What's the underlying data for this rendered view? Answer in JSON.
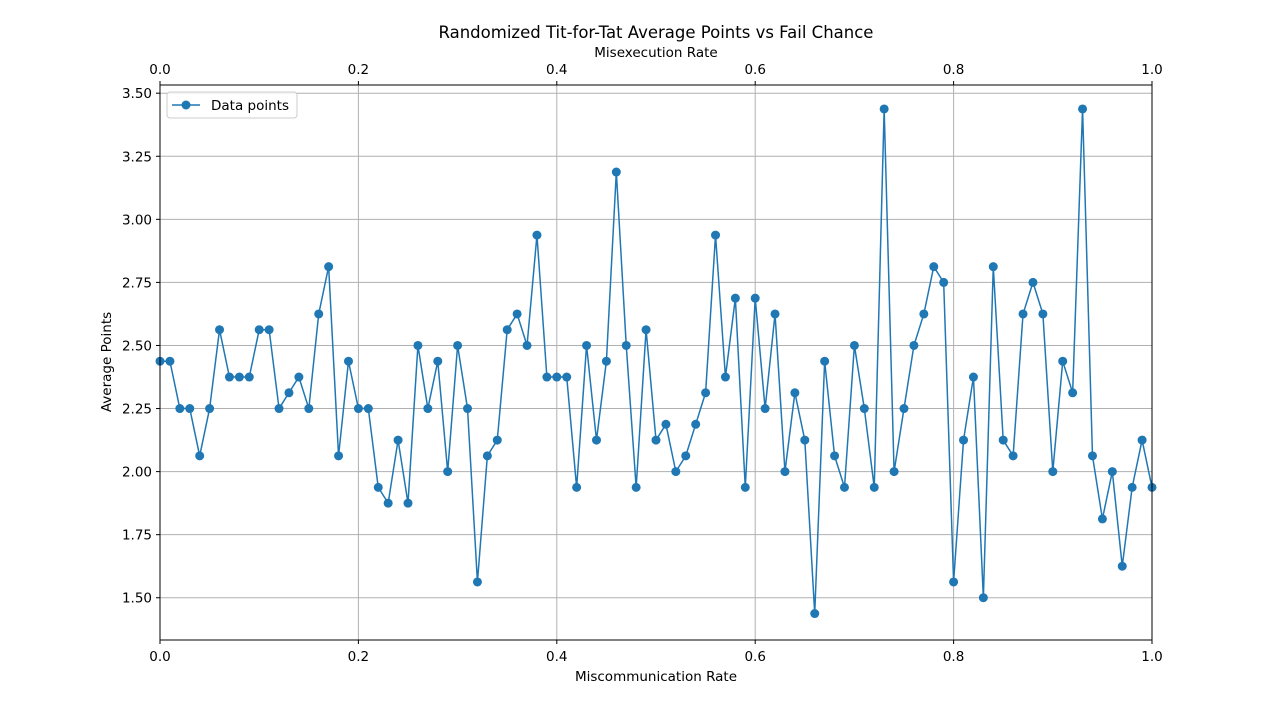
{
  "chart_data": {
    "type": "line",
    "title": "Randomized Tit-for-Tat Average Points vs Fail Chance",
    "xlabel": "Miscommunication Rate",
    "x2label": "Misexecution Rate",
    "ylabel": "Average Points",
    "xlim": [
      0,
      1
    ],
    "ylim": [
      1.3325,
      3.5325
    ],
    "grid": true,
    "legend_position": "top-left",
    "x_ticks": [
      "0.0",
      "0.2",
      "0.4",
      "0.6",
      "0.8",
      "1.0"
    ],
    "x2_ticks": [
      "0.0",
      "0.2",
      "0.4",
      "0.6",
      "0.8",
      "1.0"
    ],
    "y_ticks": [
      "1.50",
      "1.75",
      "2.00",
      "2.25",
      "2.50",
      "2.75",
      "3.00",
      "3.25",
      "3.50"
    ],
    "series": [
      {
        "name": "Data points",
        "color": "#1f77b4",
        "x": [
          0.0,
          0.01,
          0.02,
          0.03,
          0.04,
          0.05,
          0.06,
          0.07,
          0.08,
          0.09,
          0.1,
          0.11,
          0.12,
          0.13,
          0.14,
          0.15,
          0.16,
          0.17,
          0.18,
          0.19,
          0.2,
          0.21,
          0.22,
          0.23,
          0.24,
          0.25,
          0.26,
          0.27,
          0.28,
          0.29,
          0.3,
          0.31,
          0.32,
          0.33,
          0.34,
          0.35,
          0.36,
          0.37,
          0.38,
          0.39,
          0.4,
          0.41,
          0.42,
          0.43,
          0.44,
          0.45,
          0.46,
          0.47,
          0.48,
          0.49,
          0.5,
          0.51,
          0.52,
          0.53,
          0.54,
          0.55,
          0.56,
          0.57,
          0.58,
          0.59,
          0.6,
          0.61,
          0.62,
          0.63,
          0.64,
          0.65,
          0.66,
          0.67,
          0.68,
          0.69,
          0.7,
          0.71,
          0.72,
          0.73,
          0.74,
          0.75,
          0.76,
          0.77,
          0.78,
          0.79,
          0.8,
          0.81,
          0.82,
          0.83,
          0.84,
          0.85,
          0.86,
          0.87,
          0.88,
          0.89,
          0.9,
          0.91,
          0.92,
          0.93,
          0.94,
          0.95,
          0.96,
          0.97,
          0.98,
          0.99,
          1.0
        ],
        "values": [
          2.4375,
          2.4375,
          2.25,
          2.25,
          2.0625,
          2.25,
          2.5625,
          2.375,
          2.375,
          2.375,
          2.5625,
          2.5625,
          2.25,
          2.3125,
          2.375,
          2.25,
          2.625,
          2.8125,
          2.0625,
          2.4375,
          2.25,
          2.25,
          1.9375,
          1.875,
          2.125,
          1.875,
          2.5,
          2.25,
          2.4375,
          2.0,
          2.5,
          2.25,
          1.5625,
          2.0625,
          2.125,
          2.5625,
          2.625,
          2.5,
          2.9375,
          2.375,
          2.375,
          2.375,
          1.9375,
          2.5,
          2.125,
          2.4375,
          3.1875,
          2.5,
          1.9375,
          2.5625,
          2.125,
          2.1875,
          2.0,
          2.0625,
          2.1875,
          2.3125,
          2.9375,
          2.375,
          2.6875,
          1.9375,
          2.6875,
          2.25,
          2.625,
          2.0,
          2.3125,
          2.125,
          1.4375,
          2.4375,
          2.0625,
          1.9375,
          2.5,
          2.25,
          1.9375,
          3.4375,
          2.0,
          2.25,
          2.5,
          2.625,
          2.8125,
          2.75,
          1.5625,
          2.125,
          2.375,
          1.5,
          2.8125,
          2.125,
          2.0625,
          2.625,
          2.75,
          2.625,
          2.0,
          2.4375,
          2.3125,
          3.4375,
          2.0625,
          1.8125,
          2.0,
          1.625,
          1.9375,
          2.125,
          1.9375
        ]
      }
    ]
  }
}
